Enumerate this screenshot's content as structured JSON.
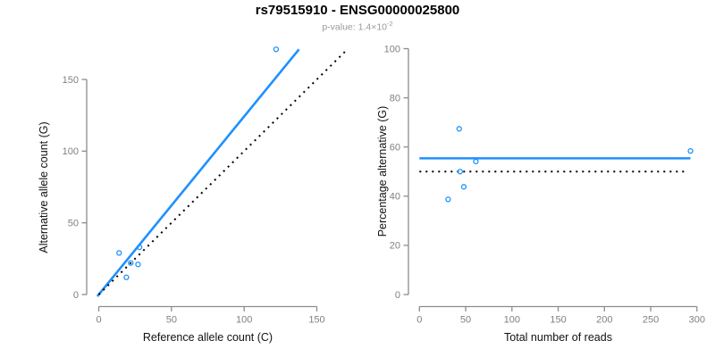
{
  "title": "rs79515910 - ENSG00000025800",
  "subtitle": {
    "label": "p-value:",
    "value_base": "1.4×10",
    "value_exponent": "-2"
  },
  "colors": {
    "accent_blue": "#1E90FF",
    "line_black": "#000000",
    "axis_gray": "#8C8C8C",
    "tick_text_gray": "#808080",
    "subtitle_gray": "#9A9A9A"
  },
  "chart_data": [
    {
      "type": "scatter",
      "xlabel": "Reference allele count (C)",
      "ylabel": "Alternative allele count (G)",
      "xticks": [
        0,
        50,
        100,
        150
      ],
      "yticks": [
        0,
        50,
        100,
        150
      ],
      "xlim": [
        0,
        172
      ],
      "ylim": [
        0,
        172
      ],
      "grid": false,
      "legend": "none",
      "point_style": {
        "marker": "open-circle",
        "color": "#1E90FF"
      },
      "points": [
        [
          14,
          29
        ],
        [
          28,
          33
        ],
        [
          22,
          22
        ],
        [
          27,
          21
        ],
        [
          19,
          12
        ],
        [
          122,
          171
        ]
      ],
      "lines": [
        {
          "name": "regression-line",
          "style": "solid",
          "color": "#1E90FF",
          "from": [
            -1,
            -1.24
          ],
          "to": [
            137.7,
            171
          ]
        },
        {
          "name": "identity-line",
          "style": "dotted",
          "color": "#000000",
          "from": [
            0,
            0
          ],
          "to": [
            171,
            171
          ]
        }
      ]
    },
    {
      "type": "scatter",
      "xlabel": "Total number of reads",
      "ylabel": "Percentage alternative (G)",
      "xticks": [
        0,
        50,
        100,
        150,
        200,
        250,
        300
      ],
      "yticks": [
        0,
        20,
        40,
        60,
        80,
        100
      ],
      "xlim": [
        0,
        300
      ],
      "ylim": [
        0,
        100
      ],
      "grid": false,
      "legend": "none",
      "point_style": {
        "marker": "open-circle",
        "color": "#1E90FF"
      },
      "points": [
        [
          31,
          38.7
        ],
        [
          43,
          67.4
        ],
        [
          44,
          50
        ],
        [
          48,
          43.8
        ],
        [
          61,
          54.1
        ],
        [
          293,
          58.4
        ]
      ],
      "lines": [
        {
          "name": "mean-percentage-line",
          "style": "solid",
          "color": "#1E90FF",
          "from": [
            0,
            55.4
          ],
          "to": [
            293,
            55.4
          ]
        },
        {
          "name": "expected-50pct-line",
          "style": "dotted",
          "color": "#000000",
          "from": [
            0,
            50
          ],
          "to": [
            288,
            50
          ]
        }
      ]
    }
  ]
}
